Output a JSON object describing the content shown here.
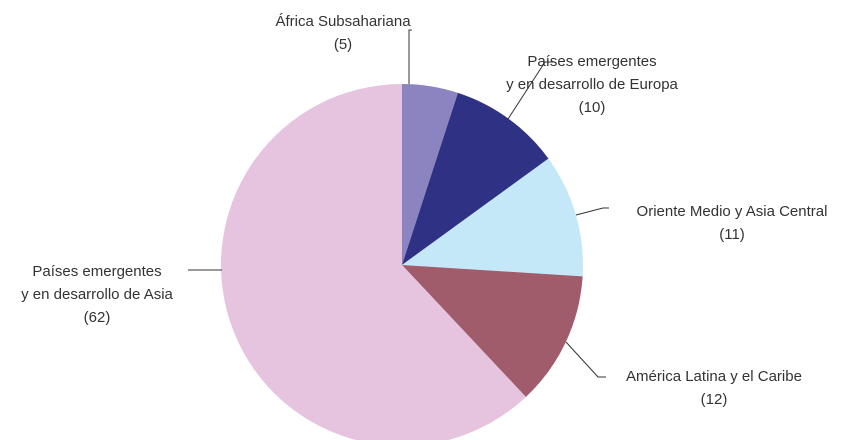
{
  "chart_data": {
    "type": "pie",
    "categories": [
      "África Subsahariana",
      "Países emergentes\ny en desarrollo de Europa",
      "Oriente Medio y Asia Central",
      "América Latina y el Caribe",
      "Países emergentes\ny en desarrollo de Asia"
    ],
    "values": [
      5,
      10,
      11,
      12,
      62
    ],
    "value_labels": [
      "(5)",
      "(10)",
      "(11)",
      "(12)",
      "(62)"
    ],
    "colors": [
      "#8b84c0",
      "#2e3184",
      "#c5e8f8",
      "#a05c6a",
      "#e6c3de"
    ]
  }
}
